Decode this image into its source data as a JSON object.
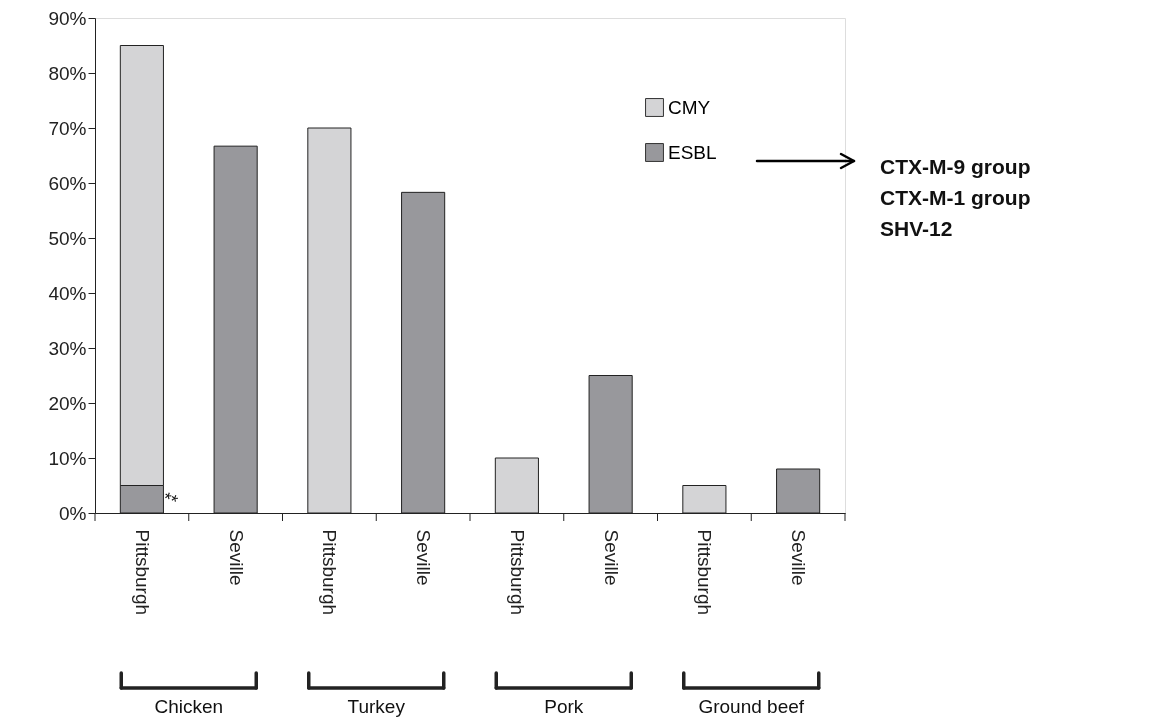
{
  "chart_data": {
    "type": "bar",
    "stacked": true,
    "categories": [
      "Pittsburgh",
      "Seville",
      "Pittsburgh",
      "Seville",
      "Pittsburgh",
      "Seville",
      "Pittsburgh",
      "Seville"
    ],
    "series": [
      {
        "name": "ESBL",
        "color": "#98989c",
        "values": [
          5,
          66.7,
          null,
          58.3,
          null,
          25,
          null,
          8
        ]
      },
      {
        "name": "CMY",
        "color": "#d4d4d6",
        "values": [
          80,
          null,
          70,
          null,
          10,
          null,
          5,
          null
        ]
      }
    ],
    "ylim": [
      0,
      90
    ],
    "yticks": [
      {
        "value": 0,
        "label": "0%"
      },
      {
        "value": 10,
        "label": "10%"
      },
      {
        "value": 20,
        "label": "20%"
      },
      {
        "value": 30,
        "label": "30%"
      },
      {
        "value": 40,
        "label": "40%"
      },
      {
        "value": 50,
        "label": "50%"
      },
      {
        "value": 60,
        "label": "60%"
      },
      {
        "value": 70,
        "label": "70%"
      },
      {
        "value": 80,
        "label": "80%"
      },
      {
        "value": 90,
        "label": "90%"
      }
    ],
    "grid": false,
    "legend": "top right",
    "annotations": [
      "**",
      "CTX-M-9 group",
      "CTX-M-1 group",
      "SHV-12",
      "Chicken",
      "Turkey",
      "Pork",
      "Ground beef"
    ]
  }
}
